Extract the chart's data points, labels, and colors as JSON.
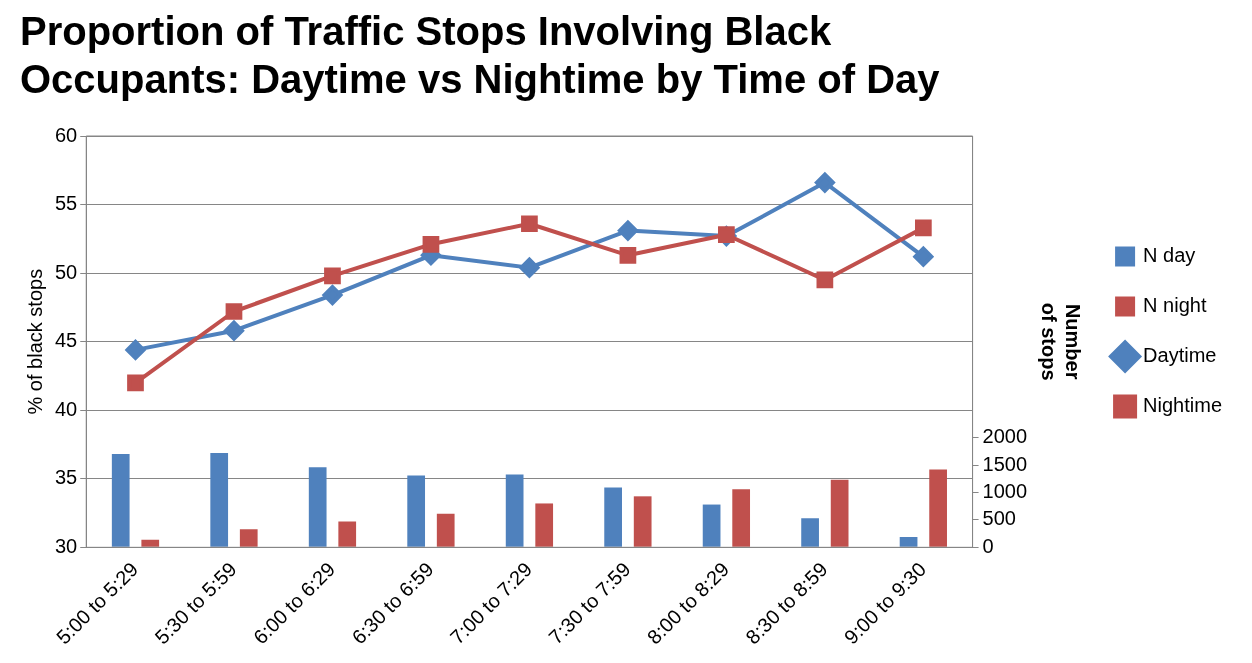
{
  "chart_data": {
    "type": "bar",
    "title": "Proportion of Traffic Stops Involving Black Occupants: Daytime vs Nightime by Time of Day",
    "ylabel": "% of black stops",
    "y2label": "Number of stops",
    "categories": [
      "5:00 to 5:29",
      "5:30 to 5:59",
      "6:00 to 6:29",
      "6:30 to 6:59",
      "7:00 to 7:29",
      "7:30 to 7:59",
      "8:00 to 8:29",
      "8:30 to 8:59",
      "9:00 to 9:30"
    ],
    "series": [
      {
        "name": "N day",
        "axis": "y2",
        "color": "#4f81bd",
        "values": [
          1700,
          1720,
          1460,
          1310,
          1330,
          1090,
          780,
          530,
          190
        ]
      },
      {
        "name": "N night",
        "axis": "y2",
        "color": "#c0504d",
        "values": [
          140,
          330,
          470,
          610,
          800,
          930,
          1060,
          1230,
          1420
        ]
      },
      {
        "name": "Daytime",
        "type": "line",
        "marker": "diamond",
        "color": "#4f81bd",
        "values": [
          44.4,
          45.8,
          48.4,
          51.3,
          50.4,
          53.1,
          52.7,
          56.6,
          51.2
        ]
      },
      {
        "name": "Nightime",
        "type": "line",
        "marker": "square",
        "color": "#c0504d",
        "values": [
          42.0,
          47.2,
          49.8,
          52.1,
          53.6,
          51.3,
          52.8,
          49.5,
          53.3
        ]
      }
    ],
    "ylim": [
      30,
      60
    ],
    "yticks": [
      30,
      35,
      40,
      45,
      50,
      55,
      60
    ],
    "y2lim": [
      0,
      7500
    ],
    "y2ticks": [
      0,
      500,
      1000,
      1500,
      2000
    ],
    "grid": "y",
    "legend": "right"
  }
}
